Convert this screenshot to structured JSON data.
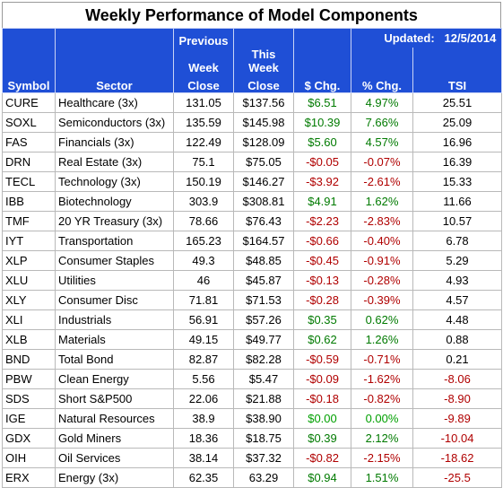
{
  "title": "Weekly Performance of Model Components",
  "updated_label": "Updated:",
  "updated_date": "12/5/2014",
  "headers": {
    "symbol": "Symbol",
    "sector": "Sector",
    "prev_line1": "Previous",
    "prev_line2": "Week",
    "prev_line3": "Close",
    "this_line1": "This Week",
    "this_line2": "Close",
    "chg": "$ Chg.",
    "pct": "% Chg.",
    "tsi": "TSI"
  },
  "rows": [
    {
      "symbol": "CURE",
      "sector": "Healthcare  (3x)",
      "prev": "131.05",
      "this": "$137.56",
      "chg": "$6.51",
      "pct": "4.97%",
      "tsi": "25.51",
      "dir": "pos"
    },
    {
      "symbol": "SOXL",
      "sector": "Semiconductors  (3x)",
      "prev": "135.59",
      "this": "$145.98",
      "chg": "$10.39",
      "pct": "7.66%",
      "tsi": "25.09",
      "dir": "pos"
    },
    {
      "symbol": "FAS",
      "sector": "Financials  (3x)",
      "prev": "122.49",
      "this": "$128.09",
      "chg": "$5.60",
      "pct": "4.57%",
      "tsi": "16.96",
      "dir": "pos"
    },
    {
      "symbol": "DRN",
      "sector": "Real Estate  (3x)",
      "prev": "75.1",
      "this": "$75.05",
      "chg": "-$0.05",
      "pct": "-0.07%",
      "tsi": "16.39",
      "dir": "neg"
    },
    {
      "symbol": "TECL",
      "sector": "Technology  (3x)",
      "prev": "150.19",
      "this": "$146.27",
      "chg": "-$3.92",
      "pct": "-2.61%",
      "tsi": "15.33",
      "dir": "neg"
    },
    {
      "symbol": "IBB",
      "sector": "Biotechnology",
      "prev": "303.9",
      "this": "$308.81",
      "chg": "$4.91",
      "pct": "1.62%",
      "tsi": "11.66",
      "dir": "pos"
    },
    {
      "symbol": "TMF",
      "sector": "20 YR Treasury  (3x)",
      "prev": "78.66",
      "this": "$76.43",
      "chg": "-$2.23",
      "pct": "-2.83%",
      "tsi": "10.57",
      "dir": "neg"
    },
    {
      "symbol": "IYT",
      "sector": "Transportation",
      "prev": "165.23",
      "this": "$164.57",
      "chg": "-$0.66",
      "pct": "-0.40%",
      "tsi": "6.78",
      "dir": "neg"
    },
    {
      "symbol": "XLP",
      "sector": "Consumer Staples",
      "prev": "49.3",
      "this": "$48.85",
      "chg": "-$0.45",
      "pct": "-0.91%",
      "tsi": "5.29",
      "dir": "neg"
    },
    {
      "symbol": "XLU",
      "sector": "Utilities",
      "prev": "46",
      "this": "$45.87",
      "chg": "-$0.13",
      "pct": "-0.28%",
      "tsi": "4.93",
      "dir": "neg"
    },
    {
      "symbol": "XLY",
      "sector": "Consumer Disc",
      "prev": "71.81",
      "this": "$71.53",
      "chg": "-$0.28",
      "pct": "-0.39%",
      "tsi": "4.57",
      "dir": "neg"
    },
    {
      "symbol": "XLI",
      "sector": "Industrials",
      "prev": "56.91",
      "this": "$57.26",
      "chg": "$0.35",
      "pct": "0.62%",
      "tsi": "4.48",
      "dir": "pos"
    },
    {
      "symbol": "XLB",
      "sector": "Materials",
      "prev": "49.15",
      "this": "$49.77",
      "chg": "$0.62",
      "pct": "1.26%",
      "tsi": "0.88",
      "dir": "pos"
    },
    {
      "symbol": "BND",
      "sector": "Total Bond",
      "prev": "82.87",
      "this": "$82.28",
      "chg": "-$0.59",
      "pct": "-0.71%",
      "tsi": "0.21",
      "dir": "neg"
    },
    {
      "symbol": "PBW",
      "sector": "Clean Energy",
      "prev": "5.56",
      "this": "$5.47",
      "chg": "-$0.09",
      "pct": "-1.62%",
      "tsi": "-8.06",
      "dir": "neg"
    },
    {
      "symbol": "SDS",
      "sector": "Short S&P500",
      "prev": "22.06",
      "this": "$21.88",
      "chg": "-$0.18",
      "pct": "-0.82%",
      "tsi": "-8.90",
      "dir": "neg"
    },
    {
      "symbol": "IGE",
      "sector": "Natural Resources",
      "prev": "38.9",
      "this": "$38.90",
      "chg": "$0.00",
      "pct": "0.00%",
      "tsi": "-9.89",
      "dir": "zero"
    },
    {
      "symbol": "GDX",
      "sector": "Gold Miners",
      "prev": "18.36",
      "this": "$18.75",
      "chg": "$0.39",
      "pct": "2.12%",
      "tsi": "-10.04",
      "dir": "pos"
    },
    {
      "symbol": "OIH",
      "sector": "Oil Services",
      "prev": "38.14",
      "this": "$37.32",
      "chg": "-$0.82",
      "pct": "-2.15%",
      "tsi": "-18.62",
      "dir": "neg"
    },
    {
      "symbol": "ERX",
      "sector": "Energy  (3x)",
      "prev": "62.35",
      "this": "63.29",
      "chg": "$0.94",
      "pct": "1.51%",
      "tsi": "-25.5",
      "dir": "pos"
    }
  ],
  "colors": {
    "header_bg": "#1f4fd6",
    "header_text": "#ffffff",
    "positive": "#007a00",
    "negative": "#b00000",
    "zero": "#00a000"
  }
}
